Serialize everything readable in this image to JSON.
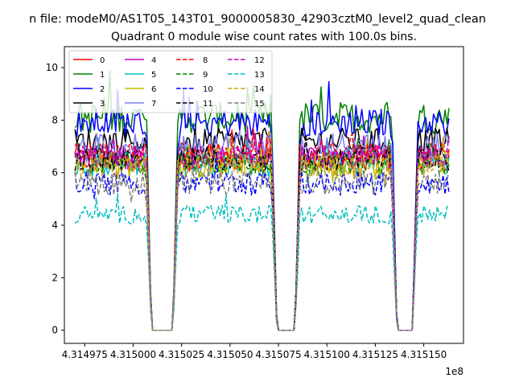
{
  "chart_data": {
    "type": "line",
    "suptitle": "n file: modeM0/AS1T05_143T01_9000005830_42903cztM0_level2_quad_clean",
    "title": "Quadrant 0 module wise count rates with 100.0s bins.",
    "xlabel": "",
    "ylabel": "",
    "x_offset_label": "1e8",
    "xlim": [
      4.3149645,
      4.3151705
    ],
    "ylim": [
      -0.5,
      10.8
    ],
    "x_ticks": [
      4.314975,
      4.315,
      4.315025,
      4.31505,
      4.315075,
      4.3151,
      4.315125,
      4.31515
    ],
    "x_tick_labels": [
      "4.314975",
      "4.315000",
      "4.315025",
      "4.315050",
      "4.315075",
      "4.315100",
      "4.315125",
      "4.315150"
    ],
    "y_ticks": [
      0,
      2,
      4,
      6,
      8,
      10
    ],
    "y_tick_labels": [
      "0",
      "2",
      "4",
      "6",
      "8",
      "10"
    ],
    "x_start": 4.31497,
    "bin_width": 1e-06,
    "segments": [
      [
        4.31497,
        4.3150068
      ],
      [
        4.3150068,
        4.3150095
      ],
      [
        4.3150095,
        4.3150205
      ],
      [
        4.3150205,
        4.3150232
      ],
      [
        4.3150232,
        4.3150715
      ],
      [
        4.3150715,
        4.3150742
      ],
      [
        4.3150742,
        4.3150835
      ],
      [
        4.3150835,
        4.3150862
      ],
      [
        4.3150862,
        4.3151335
      ],
      [
        4.3151335,
        4.3151362
      ],
      [
        4.3151362,
        4.3151442
      ],
      [
        4.3151442,
        4.3151469
      ],
      [
        4.3151469,
        4.315163
      ]
    ],
    "series": [
      {
        "name": "0",
        "color": "#ff0000",
        "dash": "solid",
        "mean": 6.5,
        "noise": 0.45
      },
      {
        "name": "1",
        "color": "#008000",
        "dash": "solid",
        "mean": 8.1,
        "noise": 0.6
      },
      {
        "name": "2",
        "color": "#0000ff",
        "dash": "solid",
        "mean": 7.9,
        "noise": 0.55
      },
      {
        "name": "3",
        "color": "#000000",
        "dash": "solid",
        "mean": 7.2,
        "noise": 0.5
      },
      {
        "name": "4",
        "color": "#bf00bf",
        "dash": "solid",
        "mean": 6.6,
        "noise": 0.45
      },
      {
        "name": "5",
        "color": "#00bfbf",
        "dash": "solid",
        "mean": 6.3,
        "noise": 0.45
      },
      {
        "name": "6",
        "color": "#bfbf00",
        "dash": "solid",
        "mean": 6.2,
        "noise": 0.45
      },
      {
        "name": "7",
        "color": "#8080f0",
        "dash": "solid",
        "mean": 7.0,
        "noise": 0.5
      },
      {
        "name": "8",
        "color": "#ff0000",
        "dash": "dashed",
        "mean": 6.7,
        "noise": 0.45
      },
      {
        "name": "9",
        "color": "#008000",
        "dash": "dashed",
        "mean": 6.4,
        "noise": 0.45
      },
      {
        "name": "10",
        "color": "#0000ff",
        "dash": "dashed",
        "mean": 5.6,
        "noise": 0.45
      },
      {
        "name": "11",
        "color": "#000000",
        "dash": "dashed",
        "mean": 6.5,
        "noise": 0.45
      },
      {
        "name": "12",
        "color": "#bf00bf",
        "dash": "dashed",
        "mean": 6.6,
        "noise": 0.45
      },
      {
        "name": "13",
        "color": "#00bfbf",
        "dash": "dashed",
        "mean": 4.4,
        "noise": 0.35
      },
      {
        "name": "14",
        "color": "#d4a017",
        "dash": "dashed",
        "mean": 6.3,
        "noise": 0.45
      },
      {
        "name": "15",
        "color": "#808080",
        "dash": "dashed",
        "mean": 5.6,
        "noise": 0.45
      }
    ],
    "legend_location": "upper-left"
  }
}
